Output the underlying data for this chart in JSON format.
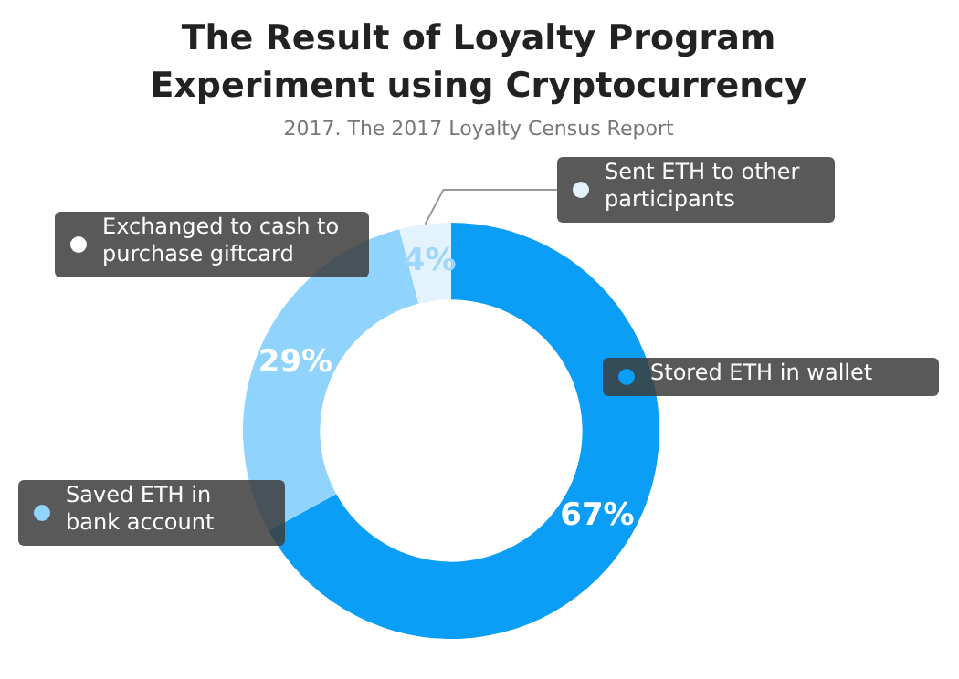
{
  "chart_data": {
    "type": "donut",
    "title": "The Result of Loyalty Program Experiment using Cryptocurrency",
    "subtitle": "2017. The 2017 Loyalty Census Report",
    "categories": [
      "Stored ETH in wallet",
      "Saved ETH in bank account",
      "Exchanged to cash to purchase giftcard",
      "Sent ETH to other participants"
    ],
    "values": [
      67,
      29,
      0,
      4
    ],
    "colors": [
      "#0a9ef7",
      "#90d3fc",
      "#ffffff",
      "#e3f3fd"
    ],
    "value_labels": [
      "67%",
      "29%",
      null,
      "4%"
    ],
    "legend": "right"
  }
}
